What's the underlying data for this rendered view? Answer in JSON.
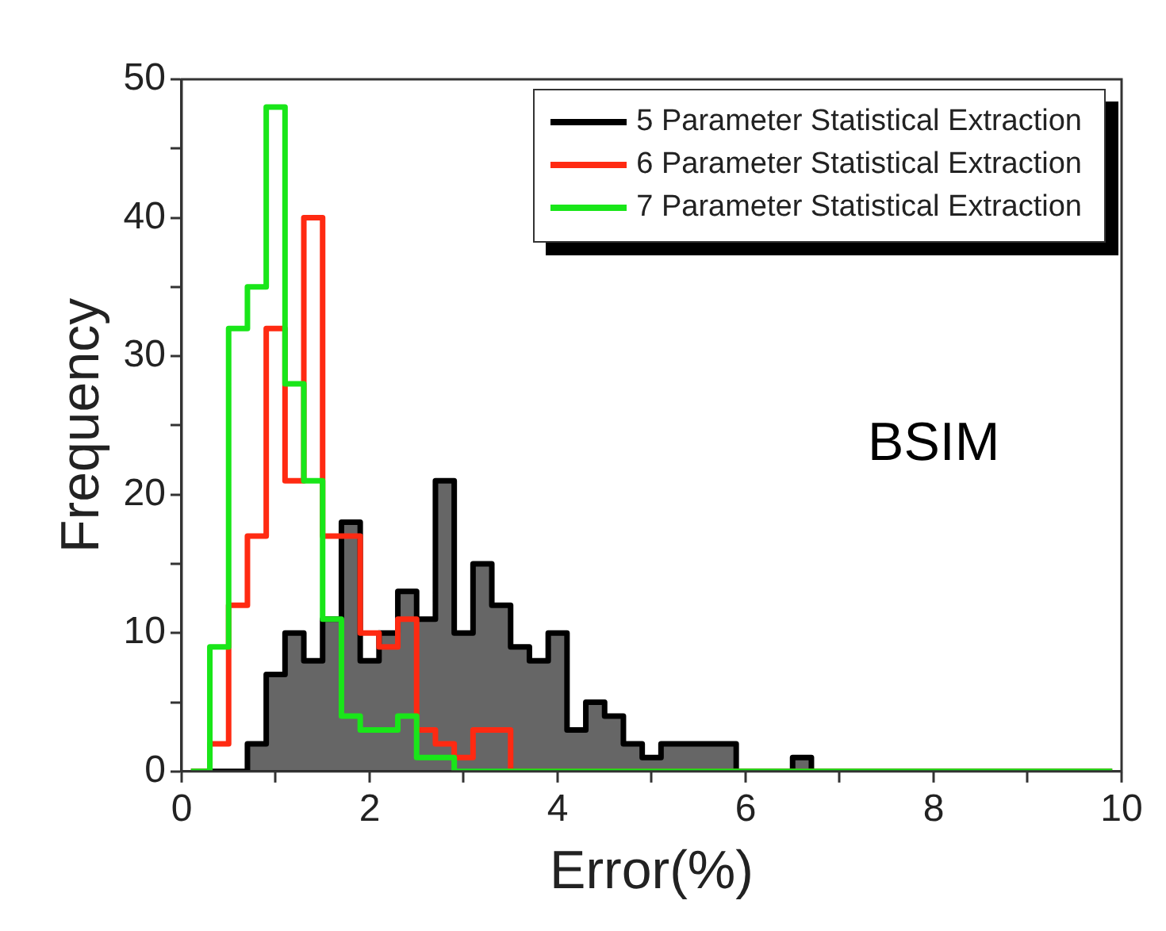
{
  "chart_data": {
    "type": "histogram",
    "xlabel": "Error(%)",
    "ylabel": "Frequency",
    "bins": [
      0.1,
      0.3,
      0.5,
      0.7,
      0.9,
      1.1,
      1.3,
      1.5,
      1.7,
      1.9,
      2.1,
      2.3,
      2.5,
      2.7,
      2.9,
      3.1,
      3.3,
      3.5,
      3.7,
      3.9,
      4.1,
      4.3,
      4.5,
      4.7,
      4.9,
      5.1,
      5.3,
      5.5,
      5.7,
      5.9,
      6.1,
      6.3,
      6.5,
      6.7,
      6.9,
      7.1,
      7.3,
      7.5,
      7.7,
      7.9,
      8.1,
      8.3,
      8.5,
      8.7,
      8.9,
      9.1,
      9.3,
      9.5,
      9.7,
      9.9
    ],
    "series": [
      {
        "name": "5 Parameter Statistical Extraction",
        "color": "#000000",
        "values": [
          0,
          0,
          0,
          2,
          7,
          10,
          8,
          11,
          18,
          8,
          10,
          13,
          11,
          21,
          10,
          15,
          12,
          9,
          8,
          10,
          3,
          5,
          4,
          2,
          1,
          2,
          2,
          2,
          2,
          0,
          0,
          0,
          1,
          0,
          0,
          0,
          0,
          0,
          0,
          0,
          0,
          0,
          0,
          0,
          0,
          0,
          0,
          0,
          0
        ]
      },
      {
        "name": "6 Parameter Statistical Extraction",
        "color": "#ff2a12",
        "values": [
          0,
          2,
          12,
          17,
          32,
          21,
          40,
          17,
          17,
          10,
          9,
          11,
          3,
          2,
          1,
          3,
          3,
          0,
          0,
          0,
          0,
          0,
          0,
          0,
          0,
          0,
          0,
          0,
          0,
          0,
          0,
          0,
          0,
          0,
          0,
          0,
          0,
          0,
          0,
          0,
          0,
          0,
          0,
          0,
          0,
          0,
          0,
          0,
          0
        ]
      },
      {
        "name": "7 Parameter Statistical Extraction",
        "color": "#19e619",
        "values": [
          0,
          9,
          32,
          35,
          48,
          28,
          21,
          11,
          4,
          3,
          3,
          4,
          1,
          1,
          0,
          0,
          0,
          0,
          0,
          0,
          0,
          0,
          0,
          0,
          0,
          0,
          0,
          0,
          0,
          0,
          0,
          0,
          0,
          0,
          0,
          0,
          0,
          0,
          0,
          0,
          0,
          0,
          0,
          0,
          0,
          0,
          0,
          0,
          0
        ]
      }
    ],
    "xlim": [
      0,
      10
    ],
    "xticks": [
      0,
      {
        "value": 1,
        "label": null
      },
      2,
      {
        "value": 3,
        "label": null
      },
      4,
      {
        "value": 5,
        "label": null
      },
      6,
      {
        "value": 7,
        "label": null
      },
      8,
      {
        "value": 9,
        "label": null
      },
      10
    ],
    "ylim": [
      0,
      50
    ],
    "yticks": [
      0,
      {
        "value": 5,
        "label": null
      },
      10,
      {
        "value": 15,
        "label": null
      },
      20,
      {
        "value": 25,
        "label": null
      },
      30,
      {
        "value": 35,
        "label": null
      },
      40,
      {
        "value": 45,
        "label": null
      },
      50
    ],
    "legend": "top right",
    "grid": false,
    "annotations": [
      "BSIM"
    ]
  }
}
